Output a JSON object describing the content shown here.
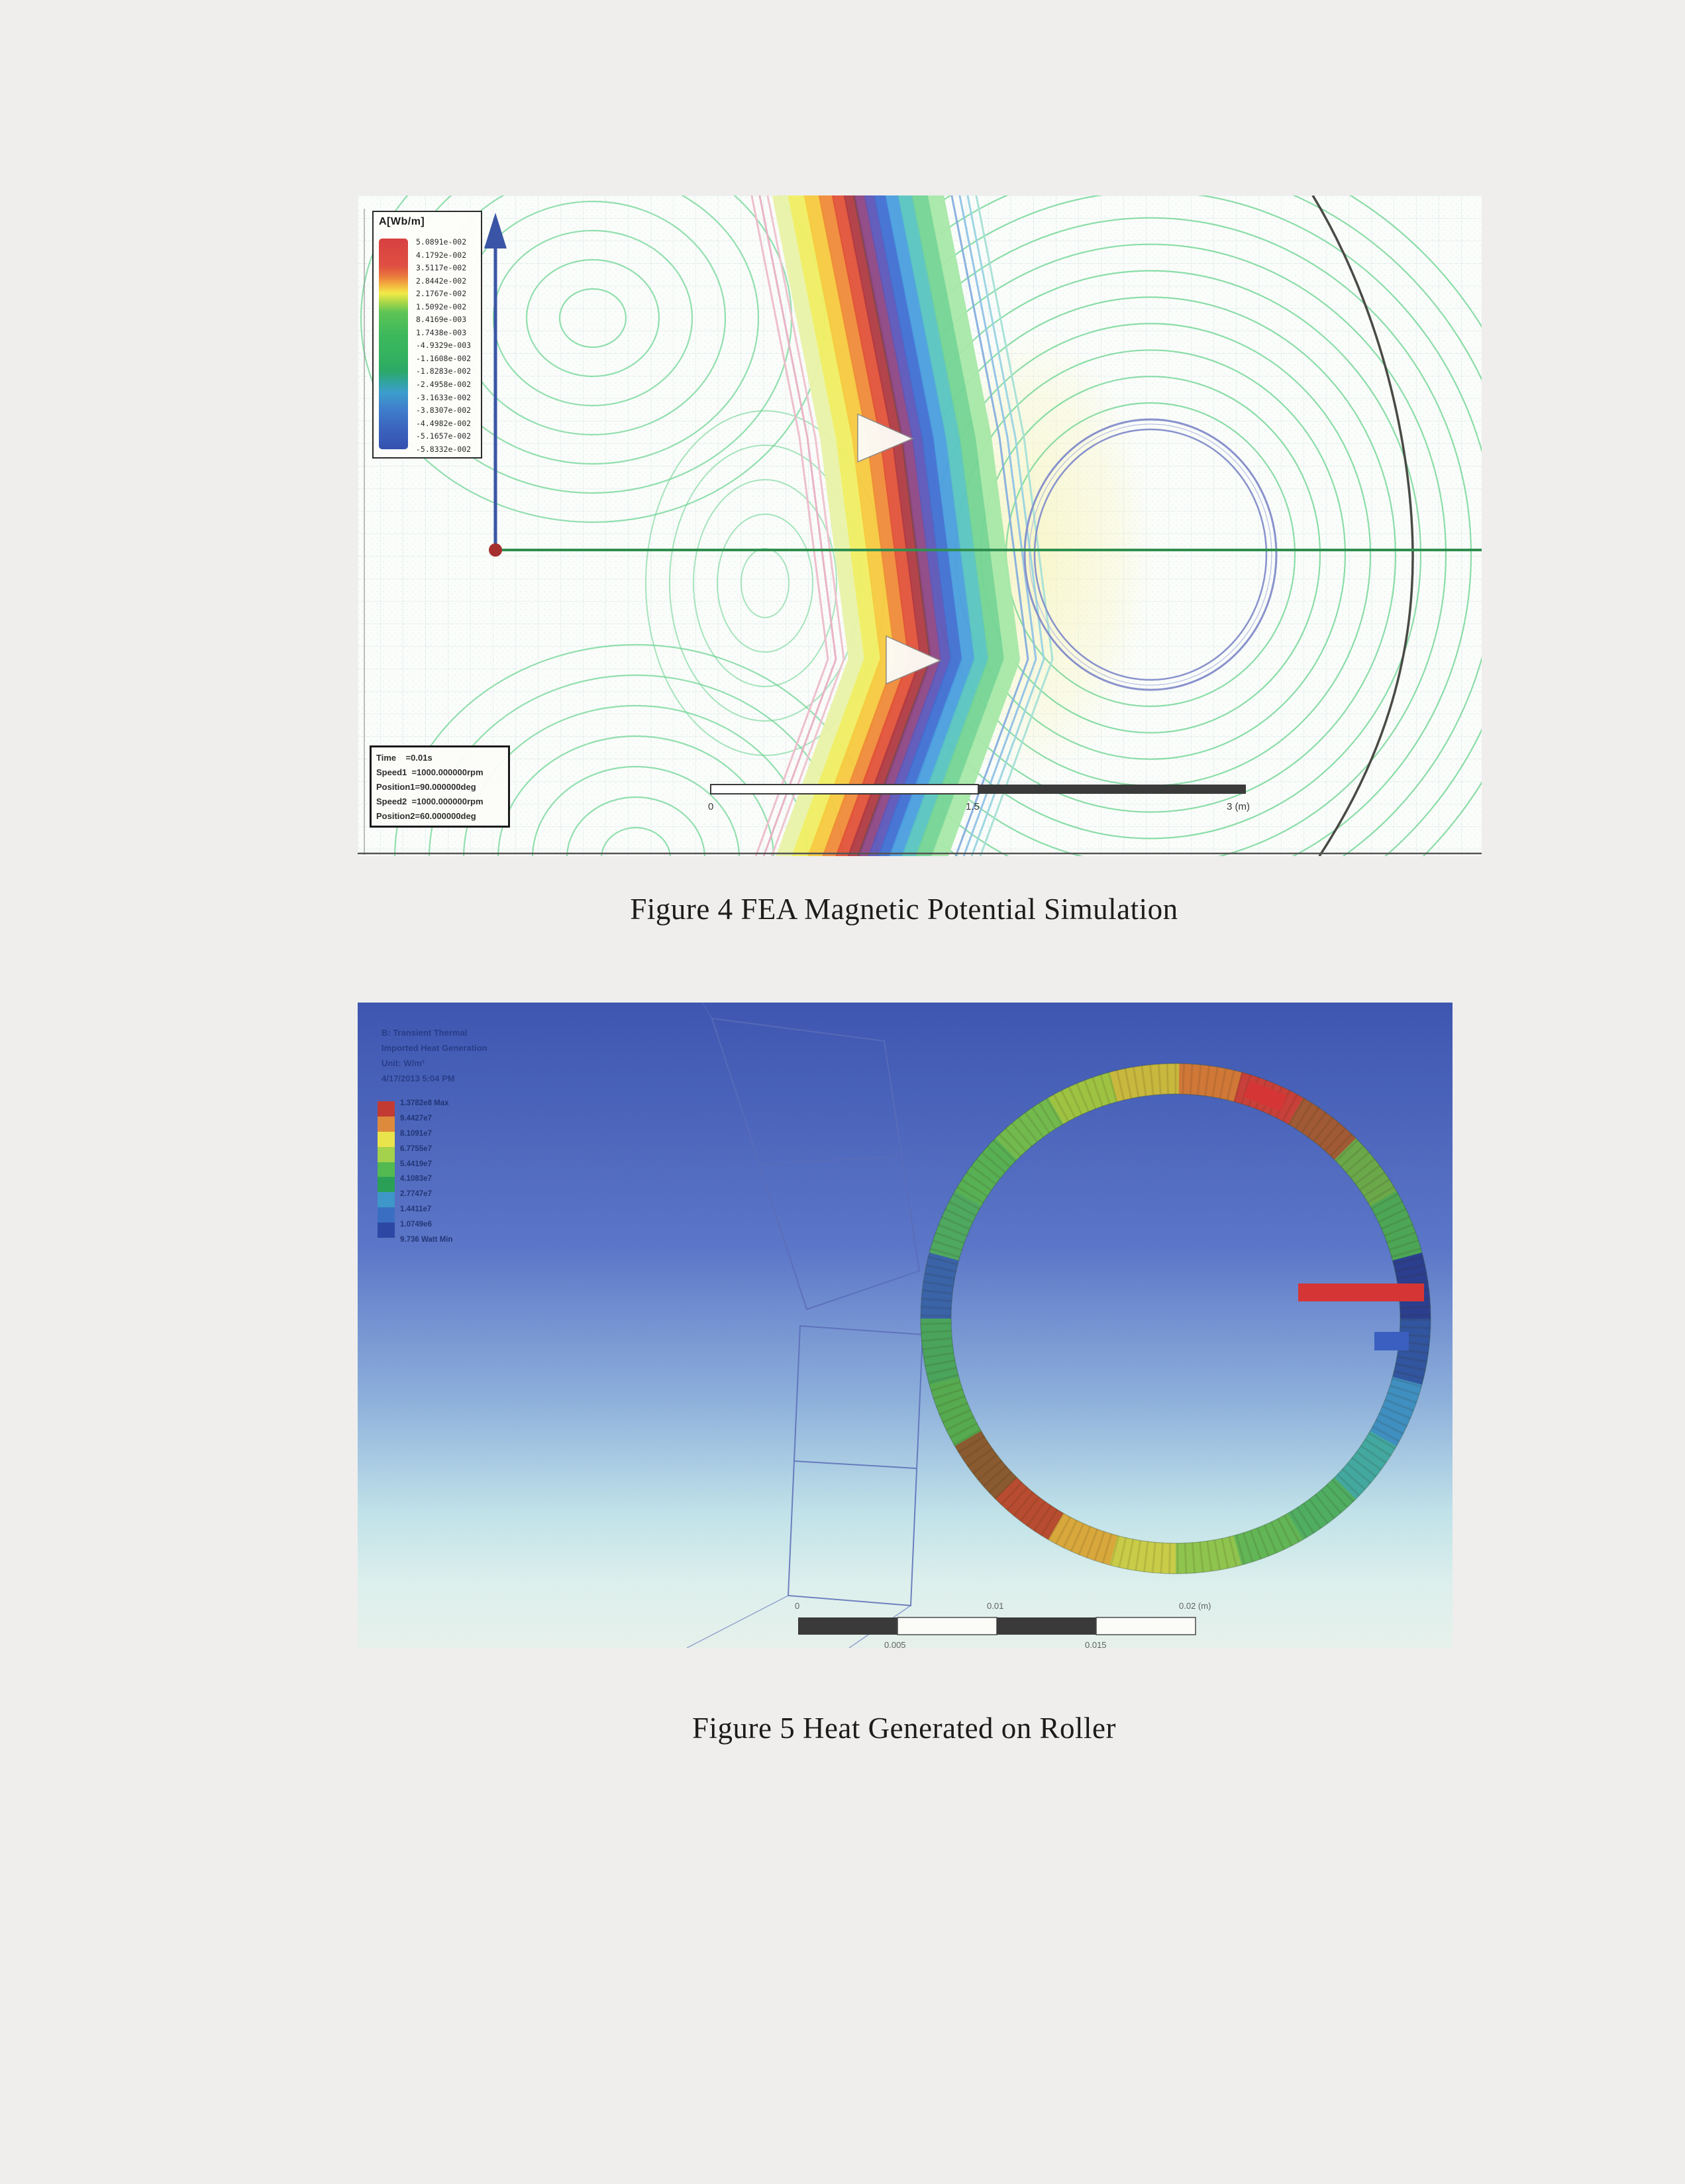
{
  "figure4": {
    "caption": "Figure 4 FEA Magnetic Potential Simulation",
    "legend": {
      "title": "A[Wb/m]",
      "values": [
        "5.0891e-002",
        "4.1792e-002",
        "3.5117e-002",
        "2.8442e-002",
        "2.1767e-002",
        "1.5092e-002",
        "8.4169e-003",
        "1.7438e-003",
        "-4.9329e-003",
        "-1.1608e-002",
        "-1.8283e-002",
        "-2.4958e-002",
        "-3.1633e-002",
        "-3.8307e-002",
        "-4.4982e-002",
        "-5.1657e-002",
        "-5.8332e-002"
      ]
    },
    "info_box": {
      "lines": [
        "Time    =0.01s",
        "Speed1  =1000.000000rpm",
        "Position1=90.000000deg",
        "Speed2  =1000.000000rpm",
        "Position2=60.000000deg"
      ]
    },
    "scale_labels": [
      "0",
      "1.5",
      "3 (m)"
    ],
    "band_stripes": [
      {
        "o": -156,
        "c": "#edbccb",
        "w": 3
      },
      {
        "o": -144,
        "c": "#e8b0c4",
        "w": 3
      },
      {
        "o": -132,
        "c": "#eec0cc",
        "w": 3
      },
      {
        "o": -112,
        "c": "#e9f2a6",
        "w": 26
      },
      {
        "o": -88,
        "c": "#f0ee62",
        "w": 26
      },
      {
        "o": -65,
        "c": "#f6c93e",
        "w": 24
      },
      {
        "o": -44,
        "c": "#ef8a38",
        "w": 22
      },
      {
        "o": -25,
        "c": "#e05238",
        "w": 20
      },
      {
        "o": -8,
        "c": "#b03a42",
        "w": 18
      },
      {
        "o": 7,
        "c": "#8c4684",
        "w": 16
      },
      {
        "o": 22,
        "c": "#5c55b8",
        "w": 16
      },
      {
        "o": 38,
        "c": "#3f6fd2",
        "w": 18
      },
      {
        "o": 56,
        "c": "#4a9ede",
        "w": 20
      },
      {
        "o": 76,
        "c": "#58c4c0",
        "w": 22
      },
      {
        "o": 98,
        "c": "#74d494",
        "w": 24
      },
      {
        "o": 122,
        "c": "#a6e8a8",
        "w": 24
      },
      {
        "o": 146,
        "c": "#86aede",
        "w": 3
      },
      {
        "o": 158,
        "c": "#90c2e6",
        "w": 3
      },
      {
        "o": 170,
        "c": "#9ad4e2",
        "w": 3
      },
      {
        "o": 183,
        "c": "#a6e0d6",
        "w": 3
      }
    ],
    "colors": {
      "contour_green": "#6fd494",
      "axis_green": "#2f8f4f",
      "arrow_blue": "#3a55a5",
      "origin_red": "#a52f2f",
      "coil_circle": "#8892cc",
      "outer_arc": "#4a4a45"
    }
  },
  "figure5": {
    "caption": "Figure 5 Heat Generated on Roller",
    "header_lines": [
      "B: Transient Thermal",
      "Imported Heat Generation",
      "Unit: W/m³",
      "4/17/2013 5:04 PM"
    ],
    "legend_values": [
      "1.3782e8 Max",
      "9.4427e7",
      "8.1091e7",
      "6.7755e7",
      "5.4419e7",
      "4.1083e7",
      "2.7747e7",
      "1.4411e7",
      "1.0749e6",
      "9.736 Watt Min"
    ],
    "legend_colors": [
      "#c23a32",
      "#dd8a3c",
      "#eae44c",
      "#a4d24c",
      "#52ba50",
      "#2aa057",
      "#3e97c8",
      "#3a6ec2",
      "#2c48a4"
    ],
    "ring_segments": [
      "#d07838",
      "#c8403a",
      "#a05a35",
      "#6aa84a",
      "#4da655",
      "#2c3f8e",
      "#31559e",
      "#3f8fc0",
      "#42a8a0",
      "#4fae62",
      "#62b656",
      "#8fc44e",
      "#c8cc48",
      "#d8a83c",
      "#b84c30",
      "#8a5a30",
      "#56aa50",
      "#4aa45c",
      "#3a63a8",
      "#4fa860",
      "#58b055",
      "#72ba4e",
      "#9ec242",
      "#c8b83e"
    ],
    "scale_top_labels": [
      "0",
      "0.01",
      "0.02 (m)"
    ],
    "scale_bottom_labels": [
      "0.005",
      "0.015"
    ],
    "colors": {
      "bg_top": "#3d55b0",
      "bg_bottom": "#e9f3ec",
      "wireframe": "#5a6db8",
      "heat_flux_bar": "#d63535",
      "probe_marker": "#3a5fc0"
    }
  }
}
